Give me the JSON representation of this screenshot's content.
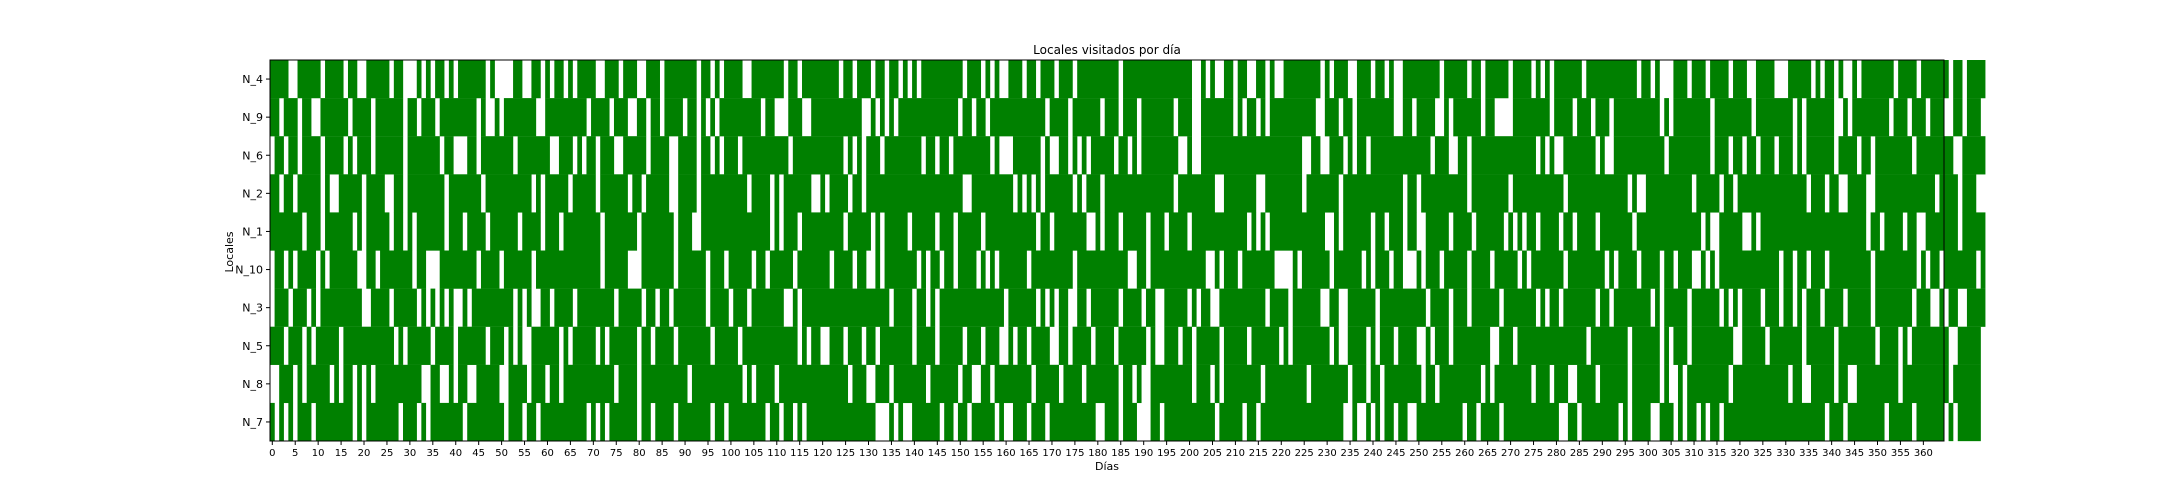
{
  "chart_data": {
    "type": "heatmap",
    "title": "Locales visitados por día",
    "xlabel": "Días",
    "ylabel": "Locales",
    "rows": [
      "N_4",
      "N_9",
      "N_6",
      "N_2",
      "N_1",
      "N_10",
      "N_3",
      "N_5",
      "N_8",
      "N_7"
    ],
    "x_range": [
      0,
      365
    ],
    "x_ticks": [
      0,
      5,
      10,
      15,
      20,
      25,
      30,
      35,
      40,
      45,
      50,
      55,
      60,
      65,
      70,
      75,
      80,
      85,
      90,
      95,
      100,
      105,
      110,
      115,
      120,
      125,
      130,
      135,
      140,
      145,
      150,
      155,
      160,
      165,
      170,
      175,
      180,
      185,
      190,
      195,
      200,
      205,
      210,
      215,
      220,
      225,
      230,
      235,
      240,
      245,
      250,
      255,
      260,
      265,
      270,
      275,
      280,
      285,
      290,
      295,
      300,
      305,
      310,
      315,
      320,
      325,
      330,
      335,
      340,
      345,
      350,
      355,
      360
    ],
    "visited_color": "#008000",
    "not_visited_color": "#ffffff",
    "grid": false,
    "legend": "none",
    "matrix": [
      "11110011111011110110011111011000101011010111111010000110011010110101111001110111001110111111101101011110011111110110111111110110111011011010101111111110111010100111011011101110111111111011111111111111100101001101100110100111111110101110011101101001111111101111101101111101111010101111110111111111110110100011101110111101110011110001111101011010010111111101111011111101101111",
      "11011101100111111011110111111011011101111111101001011111110011111111101111011100110110111101101010111111111011000111001111111111100101010111111111111101101101111111111110111101111110111011101111111011100111111101011010111111111100111011011111111001101111001011111101100001111111101111011101110111111111101011111111011111111011111111010111111001011111111011101110111001101110",
      "01101101111011110101110111111011111110110001101111111011111110011101011011100111110111100111101101011101111111111011111111111010101110111111110110110111111110100011111101001101010111110110101111111100100111111111111111111111100110011101011011111111111110111001101111111111111101010011111110100111111111110111111111011101101101110111010111111011110110111111110111111110011111",
      "11011011111010011111011110011011111111011111110111111111101011111011111011111101101111100111101111111111011110101111110010111101101111111111111111111110011111111101010101111110101110111111111111111011111111001111111001111111101111111011111111111110110111111111101111111101111111111101111111111111010011111111110111110110111111111111111011101100111100111111111111101111011100",
      "11111110111011111101011111011010111111011101111011111101111011101111111101111111011111110111001111111111111110101110111111111011111010111110111110111011111011111111111011011111110010111011111011101111011111111111101010111111111111001011111101101110110011111011110111111010101101111011011110111111101111111111111101001111100101111111111111111111111101101111011001111111011111",
      "01101011110101111110011011111110110001111111101111011111101111111111111101111100011111110111111011101111101101111101111111011110110010111111101011011011110101011111101111111110111111111110011011111111111100101110111111100001011111101111110101110110001011101111101111011111010111111101111111101011110111101101110010101111111111111011011011101111111110111111111010110111111101",
      "01110111010111111111001111011111010101010010111111111010100110111101111111101111101101101111111011110111011111110010111111111111111111101111011010111111111111110111111010101100110111111011110110011111010110011111111110111101111110011001111110111111111101111011101111110111111101011011111110110111111110101111101111110101011110111011010111011110111110111111110111001011001111",
      "11101110101111101111111111101011111011110111111011101010011111101011111010111111011011110111111101111101111111111110101100111011101101111111011110111110111011100101101111001101111011110111111010011101101111101111101111110101111111101001111010111011110010111011111111001110111111111111111011111111011111101011101111111110011111011111110111111011111111011110101111111100111110",
      "00111010111110101101010111111111100110010110011111001111011101101111111111101111011111111110111111111110101111011111111111111101110011101111111011111101100110111111110111110111101111111011010011111111101110101111111101111111110111111110111011011111111011011111111101011111111011101110011110111111011111101001011111111101111111111110110011111011001111111110111111111101111110",
      "10101011101111111101011111110111010111111101111111101110110111111111101010111111011011110111111101101111111101101101011111111111111100010100111111011011011111010011101110111111111100111011100011011111111111011111011011111111111111111100100101011011001111111111011011110111111111111001101111111101011110011101011010110111111111111111111111101110111111110111110111111010111110"
    ]
  }
}
